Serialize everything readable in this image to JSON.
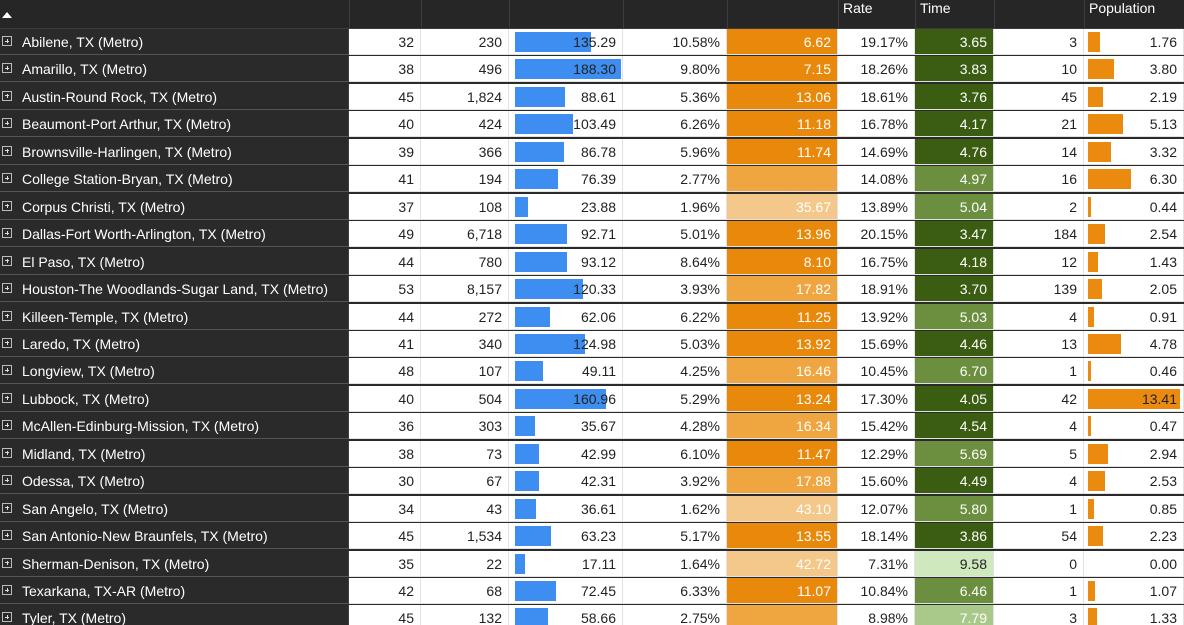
{
  "headers": {
    "col0": "",
    "col1": "",
    "col2": "",
    "col3": "",
    "col4": "",
    "col5": "",
    "col6": "Rate",
    "col7": "Time",
    "col8": "",
    "col9": "Population"
  },
  "rows": [
    {
      "name": "Abilene, TX (Metro)",
      "c1": "32",
      "c2": "230",
      "c3": "135.29",
      "c4": "10.58%",
      "c5": "6.62",
      "c6": "19.17%",
      "c7": "3.65",
      "c8": "3",
      "c9": "1.76"
    },
    {
      "name": "Amarillo, TX (Metro)",
      "c1": "38",
      "c2": "496",
      "c3": "188.30",
      "c4": "9.80%",
      "c5": "7.15",
      "c6": "18.26%",
      "c7": "3.83",
      "c8": "10",
      "c9": "3.80"
    },
    {
      "name": "Austin-Round Rock, TX (Metro)",
      "c1": "45",
      "c2": "1,824",
      "c3": "88.61",
      "c4": "5.36%",
      "c5": "13.06",
      "c6": "18.61%",
      "c7": "3.76",
      "c8": "45",
      "c9": "2.19"
    },
    {
      "name": "Beaumont-Port Arthur, TX (Metro)",
      "c1": "40",
      "c2": "424",
      "c3": "103.49",
      "c4": "6.26%",
      "c5": "11.18",
      "c6": "16.78%",
      "c7": "4.17",
      "c8": "21",
      "c9": "5.13"
    },
    {
      "name": "Brownsville-Harlingen, TX (Metro)",
      "c1": "39",
      "c2": "366",
      "c3": "86.78",
      "c4": "5.96%",
      "c5": "11.74",
      "c6": "14.69%",
      "c7": "4.76",
      "c8": "14",
      "c9": "3.32"
    },
    {
      "name": "College Station-Bryan, TX (Metro)",
      "c1": "41",
      "c2": "194",
      "c3": "76.39",
      "c4": "2.77%",
      "c5": "",
      "c6": "14.08%",
      "c7": "4.97",
      "c8": "16",
      "c9": "6.30"
    },
    {
      "name": "Corpus Christi, TX (Metro)",
      "c1": "37",
      "c2": "108",
      "c3": "23.88",
      "c4": "1.96%",
      "c5": "35.67",
      "c6": "13.89%",
      "c7": "5.04",
      "c8": "2",
      "c9": "0.44"
    },
    {
      "name": "Dallas-Fort Worth-Arlington, TX (Metro)",
      "c1": "49",
      "c2": "6,718",
      "c3": "92.71",
      "c4": "5.01%",
      "c5": "13.96",
      "c6": "20.15%",
      "c7": "3.47",
      "c8": "184",
      "c9": "2.54"
    },
    {
      "name": "El Paso, TX (Metro)",
      "c1": "44",
      "c2": "780",
      "c3": "93.12",
      "c4": "8.64%",
      "c5": "8.10",
      "c6": "16.75%",
      "c7": "4.18",
      "c8": "12",
      "c9": "1.43"
    },
    {
      "name": "Houston-The Woodlands-Sugar Land, TX (Metro)",
      "c1": "53",
      "c2": "8,157",
      "c3": "120.33",
      "c4": "3.93%",
      "c5": "17.82",
      "c6": "18.91%",
      "c7": "3.70",
      "c8": "139",
      "c9": "2.05"
    },
    {
      "name": "Killeen-Temple, TX (Metro)",
      "c1": "44",
      "c2": "272",
      "c3": "62.06",
      "c4": "6.22%",
      "c5": "11.25",
      "c6": "13.92%",
      "c7": "5.03",
      "c8": "4",
      "c9": "0.91"
    },
    {
      "name": "Laredo, TX (Metro)",
      "c1": "41",
      "c2": "340",
      "c3": "124.98",
      "c4": "5.03%",
      "c5": "13.92",
      "c6": "15.69%",
      "c7": "4.46",
      "c8": "13",
      "c9": "4.78"
    },
    {
      "name": "Longview, TX (Metro)",
      "c1": "48",
      "c2": "107",
      "c3": "49.11",
      "c4": "4.25%",
      "c5": "16.46",
      "c6": "10.45%",
      "c7": "6.70",
      "c8": "1",
      "c9": "0.46"
    },
    {
      "name": "Lubbock, TX (Metro)",
      "c1": "40",
      "c2": "504",
      "c3": "160.96",
      "c4": "5.29%",
      "c5": "13.24",
      "c6": "17.30%",
      "c7": "4.05",
      "c8": "42",
      "c9": "13.41"
    },
    {
      "name": "McAllen-Edinburg-Mission, TX (Metro)",
      "c1": "36",
      "c2": "303",
      "c3": "35.67",
      "c4": "4.28%",
      "c5": "16.34",
      "c6": "15.42%",
      "c7": "4.54",
      "c8": "4",
      "c9": "0.47"
    },
    {
      "name": "Midland, TX (Metro)",
      "c1": "38",
      "c2": "73",
      "c3": "42.99",
      "c4": "6.10%",
      "c5": "11.47",
      "c6": "12.29%",
      "c7": "5.69",
      "c8": "5",
      "c9": "2.94"
    },
    {
      "name": "Odessa, TX (Metro)",
      "c1": "30",
      "c2": "67",
      "c3": "42.31",
      "c4": "3.92%",
      "c5": "17.88",
      "c6": "15.60%",
      "c7": "4.49",
      "c8": "4",
      "c9": "2.53"
    },
    {
      "name": "San Angelo, TX (Metro)",
      "c1": "34",
      "c2": "43",
      "c3": "36.61",
      "c4": "1.62%",
      "c5": "43.10",
      "c6": "12.07%",
      "c7": "5.80",
      "c8": "1",
      "c9": "0.85"
    },
    {
      "name": "San Antonio-New Braunfels, TX (Metro)",
      "c1": "45",
      "c2": "1,534",
      "c3": "63.23",
      "c4": "5.17%",
      "c5": "13.55",
      "c6": "18.14%",
      "c7": "3.86",
      "c8": "54",
      "c9": "2.23"
    },
    {
      "name": "Sherman-Denison, TX (Metro)",
      "c1": "35",
      "c2": "22",
      "c3": "17.11",
      "c4": "1.64%",
      "c5": "42.72",
      "c6": "7.31%",
      "c7": "9.58",
      "c8": "0",
      "c9": "0.00"
    },
    {
      "name": "Texarkana, TX-AR (Metro)",
      "c1": "42",
      "c2": "68",
      "c3": "72.45",
      "c4": "6.33%",
      "c5": "11.07",
      "c6": "10.84%",
      "c7": "6.46",
      "c8": "1",
      "c9": "1.07"
    },
    {
      "name": "Tyler, TX (Metro)",
      "c1": "45",
      "c2": "132",
      "c3": "58.66",
      "c4": "2.75%",
      "c5": "",
      "c6": "8.98%",
      "c7": "7.79",
      "c8": "3",
      "c9": "1.33"
    }
  ],
  "bar_scale": {
    "c3_max": 188.3,
    "c9_max": 13.41
  },
  "colors": {
    "orange_dark": "#e8890c",
    "orange_mid": "#f0a640",
    "orange_light": "#f3c88a",
    "green_dark": "#3b5d12",
    "green_mid": "#6b8f3e",
    "green_light": "#a9c98a",
    "green_pale": "#cfe8bd",
    "bar_blue": "#3d8ef0",
    "bar_orange": "#ea8a0e"
  }
}
